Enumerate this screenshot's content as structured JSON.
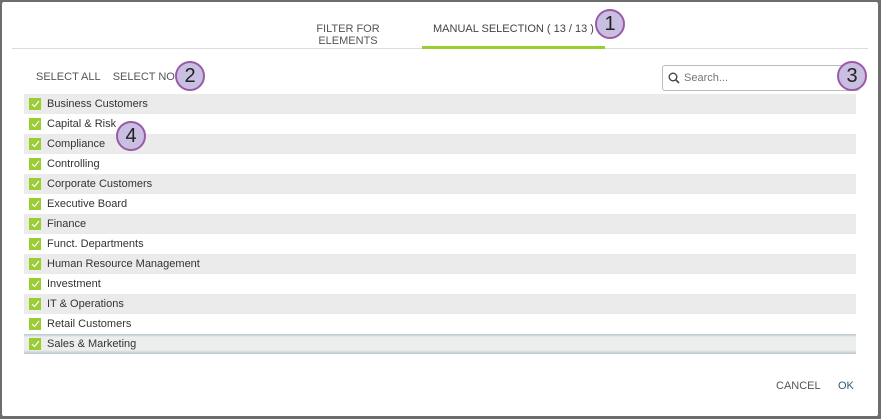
{
  "tabs": [
    {
      "label": "FILTER FOR ELEMENTS",
      "active": false
    },
    {
      "label": "MANUAL SELECTION ( 13 / 13 )",
      "active": true
    }
  ],
  "actions": {
    "select_all": "SELECT ALL",
    "select_none": "SELECT NONE"
  },
  "search": {
    "placeholder": "Search...",
    "value": ""
  },
  "items": [
    {
      "label": "Business Customers",
      "checked": true
    },
    {
      "label": "Capital & Risk",
      "checked": true
    },
    {
      "label": "Compliance",
      "checked": true
    },
    {
      "label": "Controlling",
      "checked": true
    },
    {
      "label": "Corporate Customers",
      "checked": true
    },
    {
      "label": "Executive Board",
      "checked": true
    },
    {
      "label": "Finance",
      "checked": true
    },
    {
      "label": "Funct. Departments",
      "checked": true
    },
    {
      "label": "Human Resource Management",
      "checked": true
    },
    {
      "label": "Investment",
      "checked": true
    },
    {
      "label": "IT & Operations",
      "checked": true
    },
    {
      "label": "Retail Customers",
      "checked": true
    },
    {
      "label": "Sales & Marketing",
      "checked": true,
      "highlighted": true
    }
  ],
  "footer": {
    "cancel": "CANCEL",
    "ok": "OK"
  },
  "callouts": [
    "1",
    "2",
    "3",
    "4"
  ],
  "colors": {
    "accent": "#9acd32",
    "ok": "#2a5a7a",
    "callout": "#c9bfe3"
  }
}
